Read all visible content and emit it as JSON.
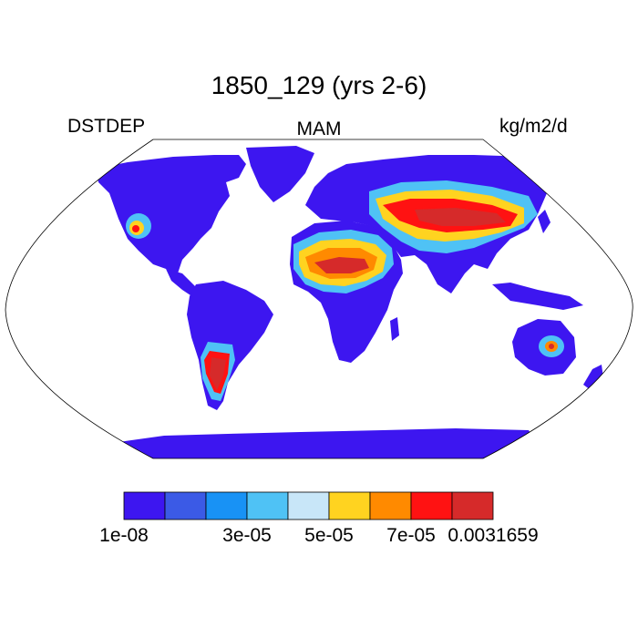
{
  "title": "1850_129 (yrs 2-6)",
  "left_label": "DSTDEP",
  "center_label": "MAM",
  "right_label": "kg/m2/d",
  "colors": {
    "land_low": "#3d16f0",
    "level2": "#3b5ae6",
    "level3": "#1892f5",
    "level4": "#4fc2f5",
    "level5": "#c8e6f8",
    "level6": "#ffd320",
    "level7": "#ff8a00",
    "level8": "#ff1212",
    "level9": "#d62a2a"
  },
  "colorbar": {
    "colors": [
      "#3d16f0",
      "#3b5ae6",
      "#1892f5",
      "#4fc2f5",
      "#c8e6f8",
      "#ffd320",
      "#ff8a00",
      "#ff1212",
      "#d62a2a"
    ],
    "labels": [
      {
        "text": "1e-08",
        "boundary": 0
      },
      {
        "text": "3e-05",
        "boundary": 3
      },
      {
        "text": "5e-05",
        "boundary": 5
      },
      {
        "text": "7e-05",
        "boundary": 7
      },
      {
        "text": "0.0031659",
        "boundary": 9
      }
    ]
  }
}
